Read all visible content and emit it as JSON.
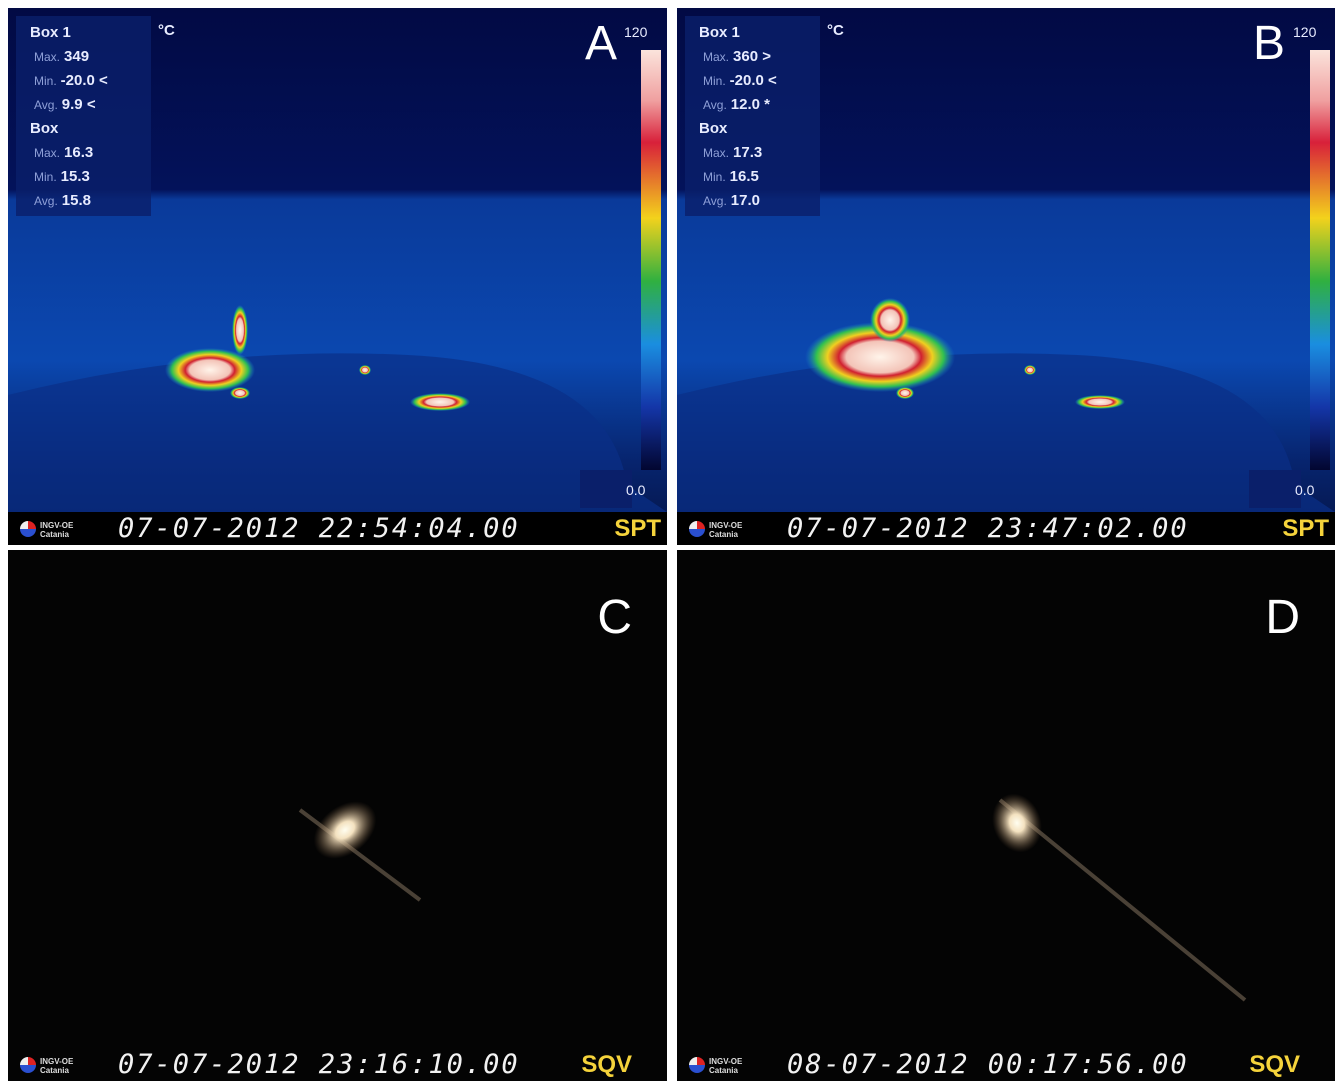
{
  "panels": [
    {
      "label": "A",
      "kind": "thermal",
      "box1": {
        "title": "Box 1",
        "unit": "°C",
        "rows": [
          {
            "name": "Max.",
            "value": "349"
          },
          {
            "name": "Min.",
            "value": "-20.0 <"
          },
          {
            "name": "Avg.",
            "value": "9.9 <"
          }
        ]
      },
      "box2": {
        "title": "Box",
        "rows": [
          {
            "name": "Max.",
            "value": "16.3"
          },
          {
            "name": "Min.",
            "value": "15.3"
          },
          {
            "name": "Avg.",
            "value": "15.8"
          }
        ]
      },
      "scale_max": "120",
      "scale_min": "0.0",
      "logo": [
        "INGV-OE",
        "Catania"
      ],
      "timestamp": "07-07-2012 22:54:04.00",
      "station": "SPT"
    },
    {
      "label": "B",
      "kind": "thermal",
      "box1": {
        "title": "Box 1",
        "unit": "°C",
        "rows": [
          {
            "name": "Max.",
            "value": "360 >"
          },
          {
            "name": "Min.",
            "value": "-20.0 <"
          },
          {
            "name": "Avg.",
            "value": "12.0 *"
          }
        ]
      },
      "box2": {
        "title": "Box",
        "rows": [
          {
            "name": "Max.",
            "value": "17.3"
          },
          {
            "name": "Min.",
            "value": "16.5"
          },
          {
            "name": "Avg.",
            "value": "17.0"
          }
        ]
      },
      "scale_max": "120",
      "scale_min": "0.0",
      "logo": [
        "INGV-OE",
        "Catania"
      ],
      "timestamp": "07-07-2012 23:47:02.00",
      "station": "SPT"
    },
    {
      "label": "C",
      "kind": "visible",
      "logo": [
        "INGV-OE",
        "Catania"
      ],
      "timestamp": "07-07-2012 23:16:10.00",
      "station": "SQV"
    },
    {
      "label": "D",
      "kind": "visible",
      "logo": [
        "INGV-OE",
        "Catania"
      ],
      "timestamp": "08-07-2012 00:17:56.00",
      "station": "SQV"
    }
  ]
}
